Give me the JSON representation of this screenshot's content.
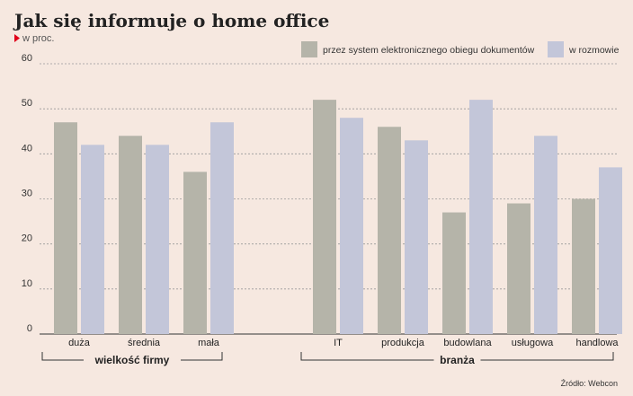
{
  "title": "Jak się informuje o home office",
  "subtitle": "w proc.",
  "source": "Źródło: Webcon",
  "colors": {
    "background": "#f6e8e0",
    "series1": "#b5b4a9",
    "series2": "#c3c6d9",
    "marker": "#e1001a",
    "grid": "#999999"
  },
  "chart_data": {
    "type": "bar",
    "categories": [
      "duża",
      "średnia",
      "mała",
      "IT",
      "produkcja",
      "budowlana",
      "usługowa",
      "handlowa"
    ],
    "groups": [
      {
        "label": "wielkość firmy",
        "categories": [
          "duża",
          "średnia",
          "mała"
        ]
      },
      {
        "label": "branża",
        "categories": [
          "IT",
          "produkcja",
          "budowlana",
          "usługowa",
          "handlowa"
        ]
      }
    ],
    "series": [
      {
        "name": "przez system elektronicznego obiegu dokumentów",
        "values": [
          47,
          44,
          36,
          52,
          46,
          27,
          29,
          30
        ]
      },
      {
        "name": "w rozmowie",
        "values": [
          42,
          42,
          47,
          48,
          43,
          52,
          44,
          37
        ]
      }
    ],
    "yticks": [
      0,
      10,
      20,
      30,
      40,
      50,
      60
    ],
    "ylim": [
      0,
      60
    ],
    "grid": true,
    "legend_position": "top-right"
  }
}
